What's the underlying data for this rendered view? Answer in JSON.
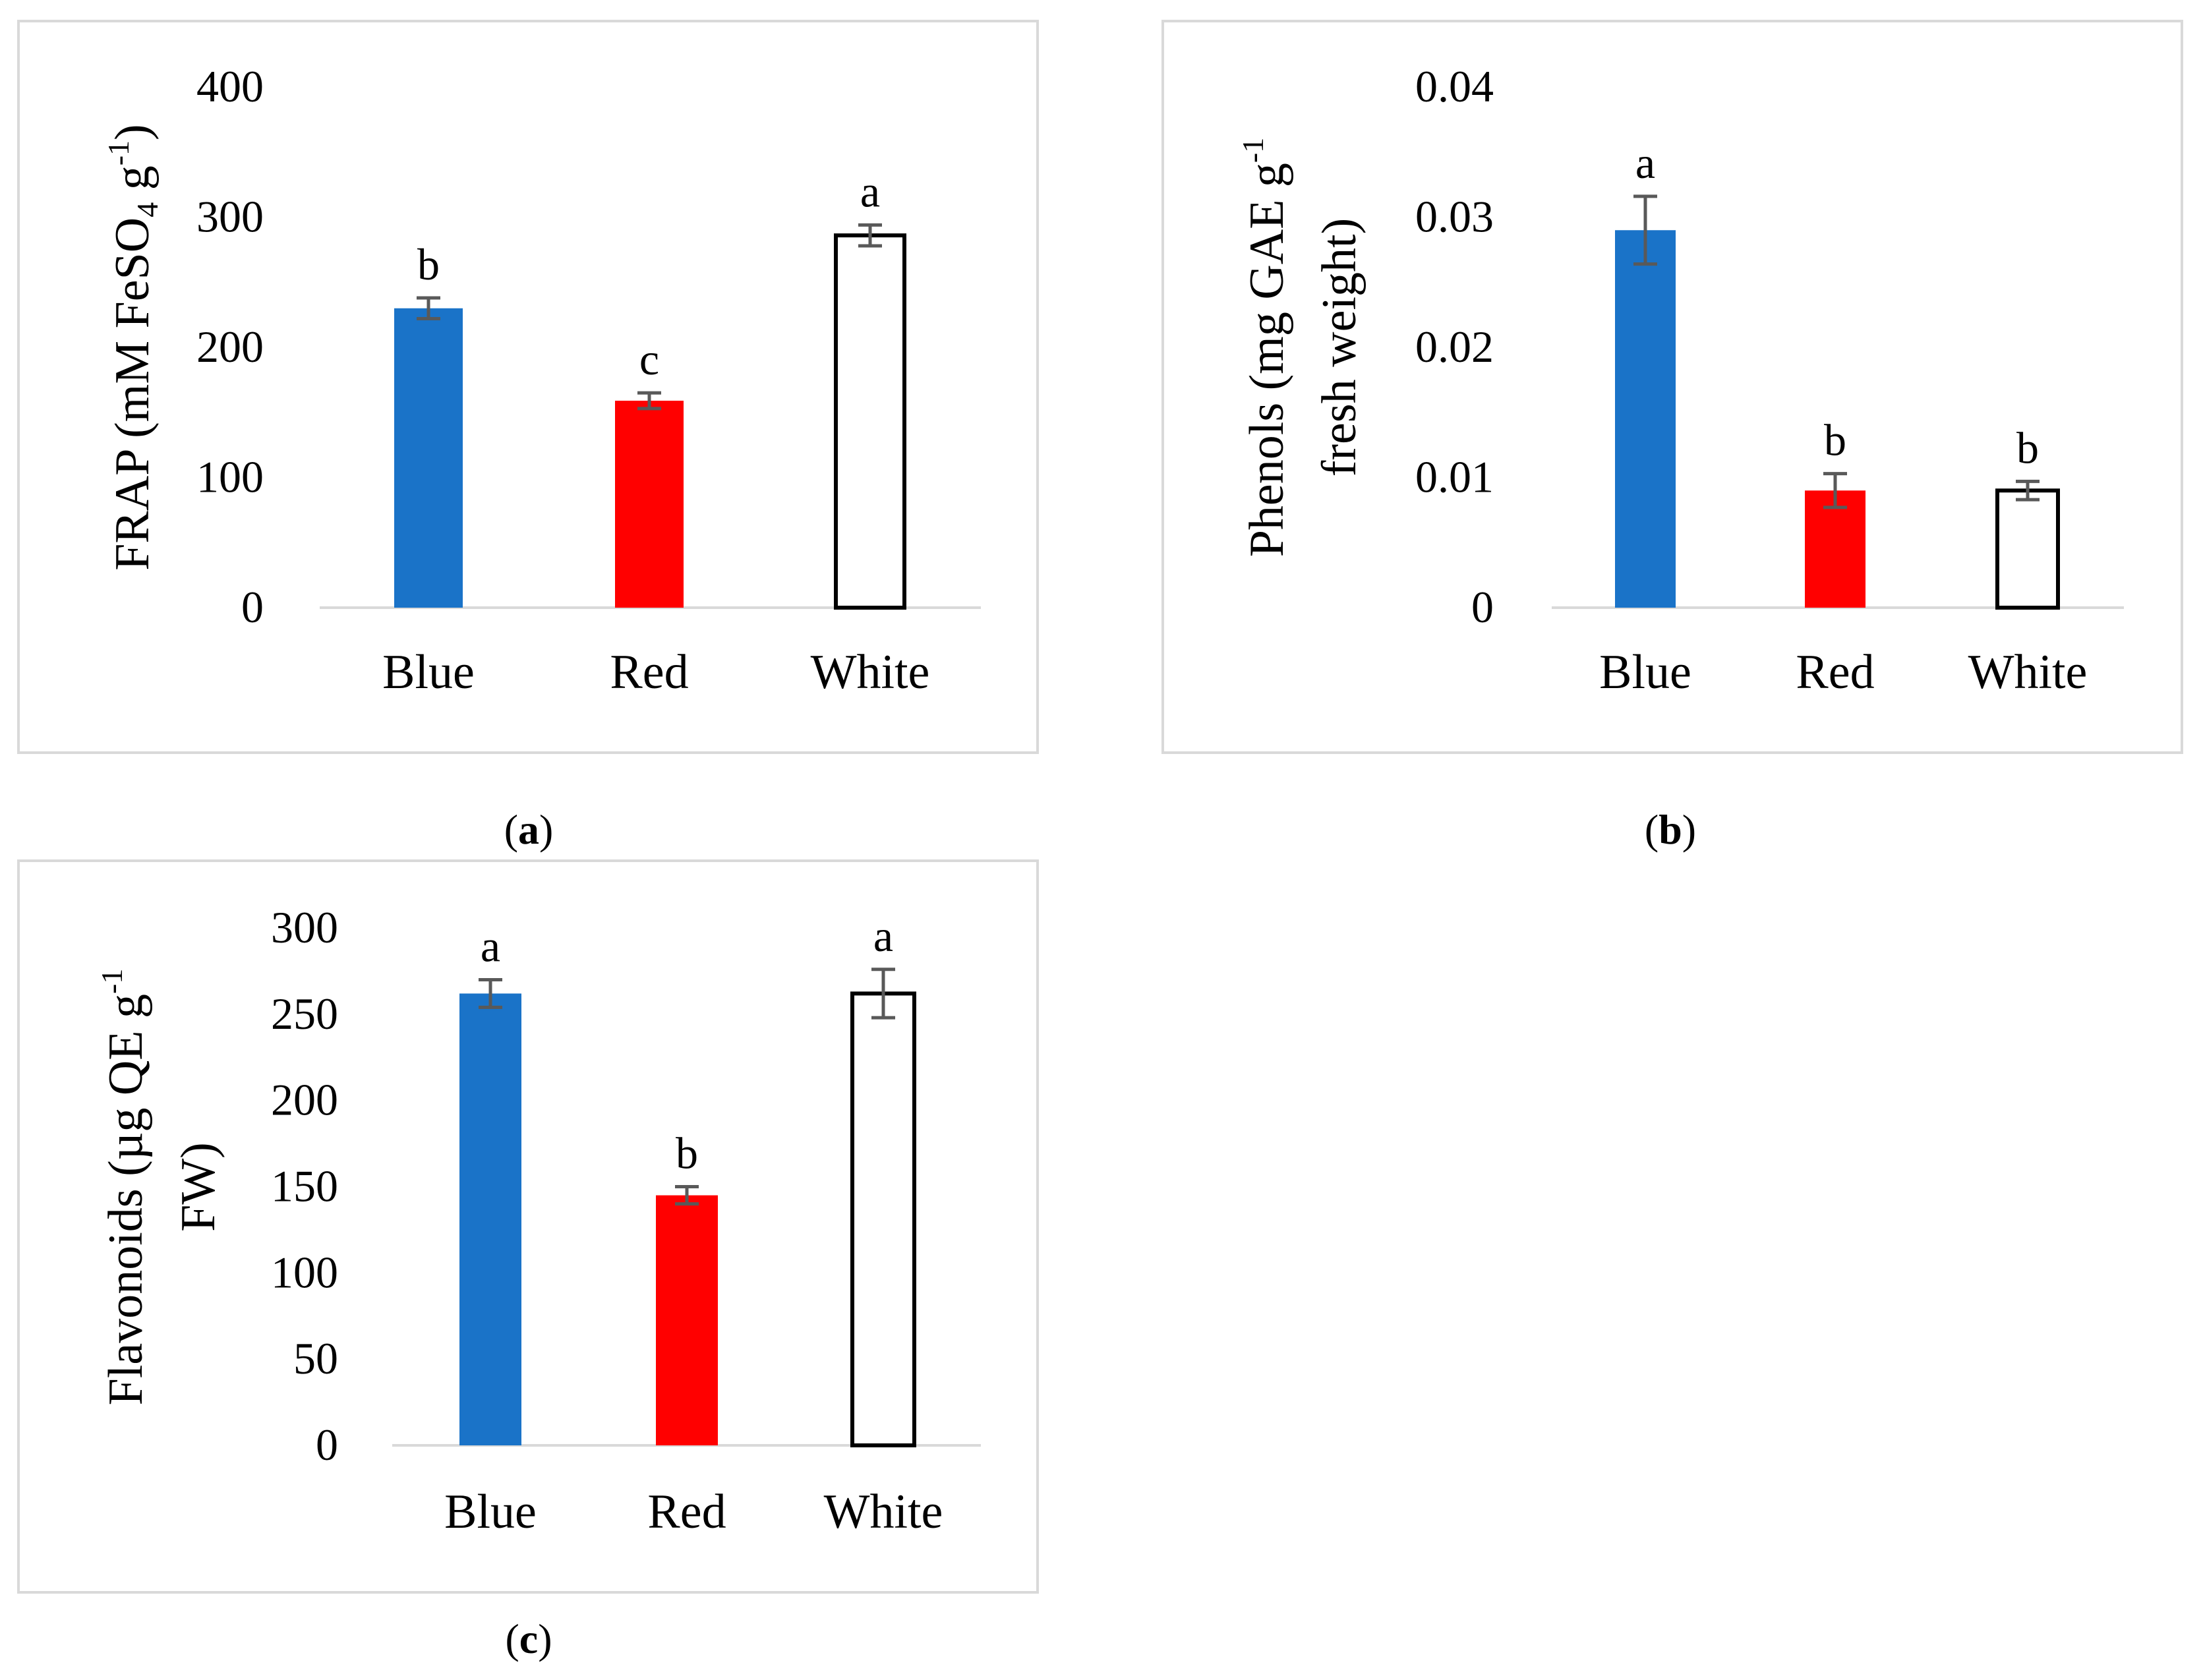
{
  "captions": {
    "a": "a",
    "b": "b",
    "c": "c"
  },
  "colors": {
    "blue": "#1a73c8",
    "red": "#ff0000",
    "white": "#ffffff",
    "error": "#595959",
    "axis": "#d9d9d9"
  },
  "chart_data": [
    {
      "id": "a",
      "type": "bar",
      "title": "",
      "xlabel": "",
      "ylabel": "FRAP (mM FeSO4 g-1)",
      "ylabel_parts": {
        "pre": "FRAP (mM FeSO",
        "sub": "4",
        "mid": " g",
        "sup": "-1",
        "post": ")"
      },
      "categories": [
        "Blue",
        "Red",
        "White"
      ],
      "values": [
        230,
        159,
        286
      ],
      "errors": [
        8,
        6,
        8
      ],
      "letters": [
        "b",
        "c",
        "a"
      ],
      "ylim": [
        0,
        400
      ],
      "yticks": [
        0,
        100,
        200,
        300,
        400
      ],
      "ytick_labels": [
        "0",
        "100",
        "200",
        "300",
        "400"
      ]
    },
    {
      "id": "b",
      "type": "bar",
      "title": "",
      "xlabel": "",
      "ylabel": "Phenols (mg GAE g-1 fresh weight)",
      "ylabel_line1_pre": "Phenols (mg GAE g",
      "ylabel_line1_sup": "-1",
      "ylabel_line2": "fresh weight)",
      "categories": [
        "Blue",
        "Red",
        "White"
      ],
      "values": [
        0.029,
        0.009,
        0.009
      ],
      "errors": [
        0.0026,
        0.0013,
        0.0007
      ],
      "letters": [
        "a",
        "b",
        "b"
      ],
      "ylim": [
        0,
        0.04
      ],
      "yticks": [
        0,
        0.01,
        0.02,
        0.03,
        0.04
      ],
      "ytick_labels": [
        "0",
        "0.01",
        "0.02",
        "0.03",
        "0.04"
      ]
    },
    {
      "id": "c",
      "type": "bar",
      "title": "",
      "xlabel": "",
      "ylabel": "Flavonoids (µg QE g-1 FW)",
      "ylabel_line1_pre": "Flavonoids (µg QE g",
      "ylabel_line1_sup": "-1",
      "ylabel_line2": "FW)",
      "categories": [
        "Blue",
        "Red",
        "White"
      ],
      "values": [
        262,
        145,
        262
      ],
      "errors": [
        8,
        5,
        14
      ],
      "letters": [
        "a",
        "b",
        "a"
      ],
      "ylim": [
        0,
        300
      ],
      "yticks": [
        0,
        50,
        100,
        150,
        200,
        250,
        300
      ],
      "ytick_labels": [
        "0",
        "50",
        "100",
        "150",
        "200",
        "250",
        "300"
      ]
    }
  ]
}
